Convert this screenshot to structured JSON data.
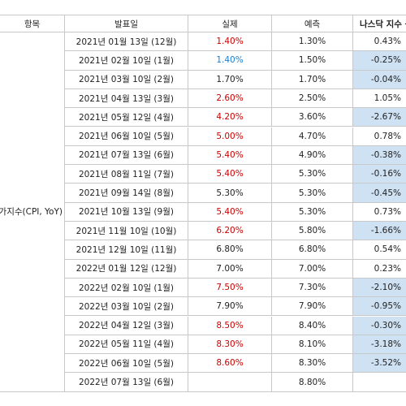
{
  "table": {
    "headers": [
      "항목",
      "발표일",
      "실제",
      "예측",
      "나스닥 지수 등락"
    ],
    "category": "소비자물가지수(CPI, YoY)",
    "rows": [
      [
        "2021년 01월 13일 (12월)",
        "1.40%",
        "1.30%",
        "0.43%"
      ],
      [
        "2021년 02월 10일 (1월)",
        "1.40%",
        "1.50%",
        "-0.25%"
      ],
      [
        "2021년 03월 10일 (2월)",
        "1.70%",
        "1.70%",
        "-0.04%"
      ],
      [
        "2021년 04월 13일 (3월)",
        "2.60%",
        "2.50%",
        "1.05%"
      ],
      [
        "2021년 05월 12일 (4월)",
        "4.20%",
        "3.60%",
        "-2.67%"
      ],
      [
        "2021년 06월 10일 (5월)",
        "5.00%",
        "4.70%",
        "0.78%"
      ],
      [
        "2021년 07월 13일 (6월)",
        "5.40%",
        "4.90%",
        "-0.38%"
      ],
      [
        "2021년 08월 11일 (7월)",
        "5.40%",
        "5.30%",
        "-0.16%"
      ],
      [
        "2021년 09월 14일 (8월)",
        "5.30%",
        "5.30%",
        "-0.45%"
      ],
      [
        "2021년 10월 13일 (9월)",
        "5.40%",
        "5.30%",
        "0.73%"
      ],
      [
        "2021년 11월 10일 (10월)",
        "6.20%",
        "5.80%",
        "-1.66%"
      ],
      [
        "2021년 12월 10일 (11월)",
        "6.80%",
        "6.80%",
        "0.54%"
      ],
      [
        "2022년 01월 12일 (12월)",
        "7.00%",
        "7.00%",
        "0.23%"
      ],
      [
        "2022년 02월 10일 (1월)",
        "7.50%",
        "7.30%",
        "-2.10%"
      ],
      [
        "2022년 03월 10일 (2월)",
        "7.90%",
        "7.90%",
        "-0.95%"
      ],
      [
        "2022년 04월 12일 (3월)",
        "8.50%",
        "8.40%",
        "-0.30%"
      ],
      [
        "2022년 05월 11일 (4월)",
        "8.30%",
        "8.10%",
        "-3.18%"
      ],
      [
        "2022년 06월 10일 (5월)",
        "8.60%",
        "8.30%",
        "-3.52%"
      ],
      [
        "2022년 07월 13일 (6월)",
        null,
        "8.80%",
        null
      ]
    ]
  }
}
